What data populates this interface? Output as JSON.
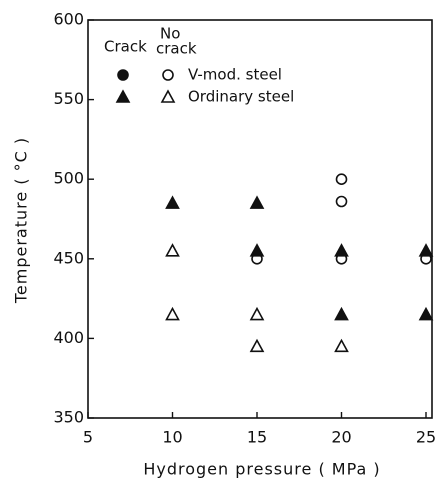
{
  "chart_data": {
    "type": "scatter",
    "xlabel": "Hydrogen pressure ( MPa )",
    "ylabel": "Temperature ( °C )",
    "xlim": [
      5,
      25
    ],
    "ylim": [
      350,
      600
    ],
    "xticks": [
      5,
      10,
      15,
      20,
      25
    ],
    "yticks": [
      350,
      400,
      450,
      500,
      550,
      600
    ],
    "legend": {
      "crack_label": "Crack",
      "no_crack_label": [
        "No",
        "crack"
      ]
    },
    "color": "#111111",
    "series": [
      {
        "name": "V-mod. steel",
        "marker": "circle",
        "crack": {
          "x": [],
          "y": []
        },
        "no_crack": {
          "x": [
            15,
            20,
            20,
            20,
            25
          ],
          "y": [
            450,
            500,
            486,
            450,
            450
          ]
        }
      },
      {
        "name": "Ordinary steel",
        "marker": "triangle",
        "crack": {
          "x": [
            10,
            15,
            15,
            20,
            20,
            25,
            25
          ],
          "y": [
            485,
            485,
            455,
            455,
            415,
            455,
            415
          ]
        },
        "no_crack": {
          "x": [
            10,
            10,
            15,
            15,
            20
          ],
          "y": [
            455,
            415,
            415,
            395,
            395
          ]
        }
      }
    ]
  }
}
